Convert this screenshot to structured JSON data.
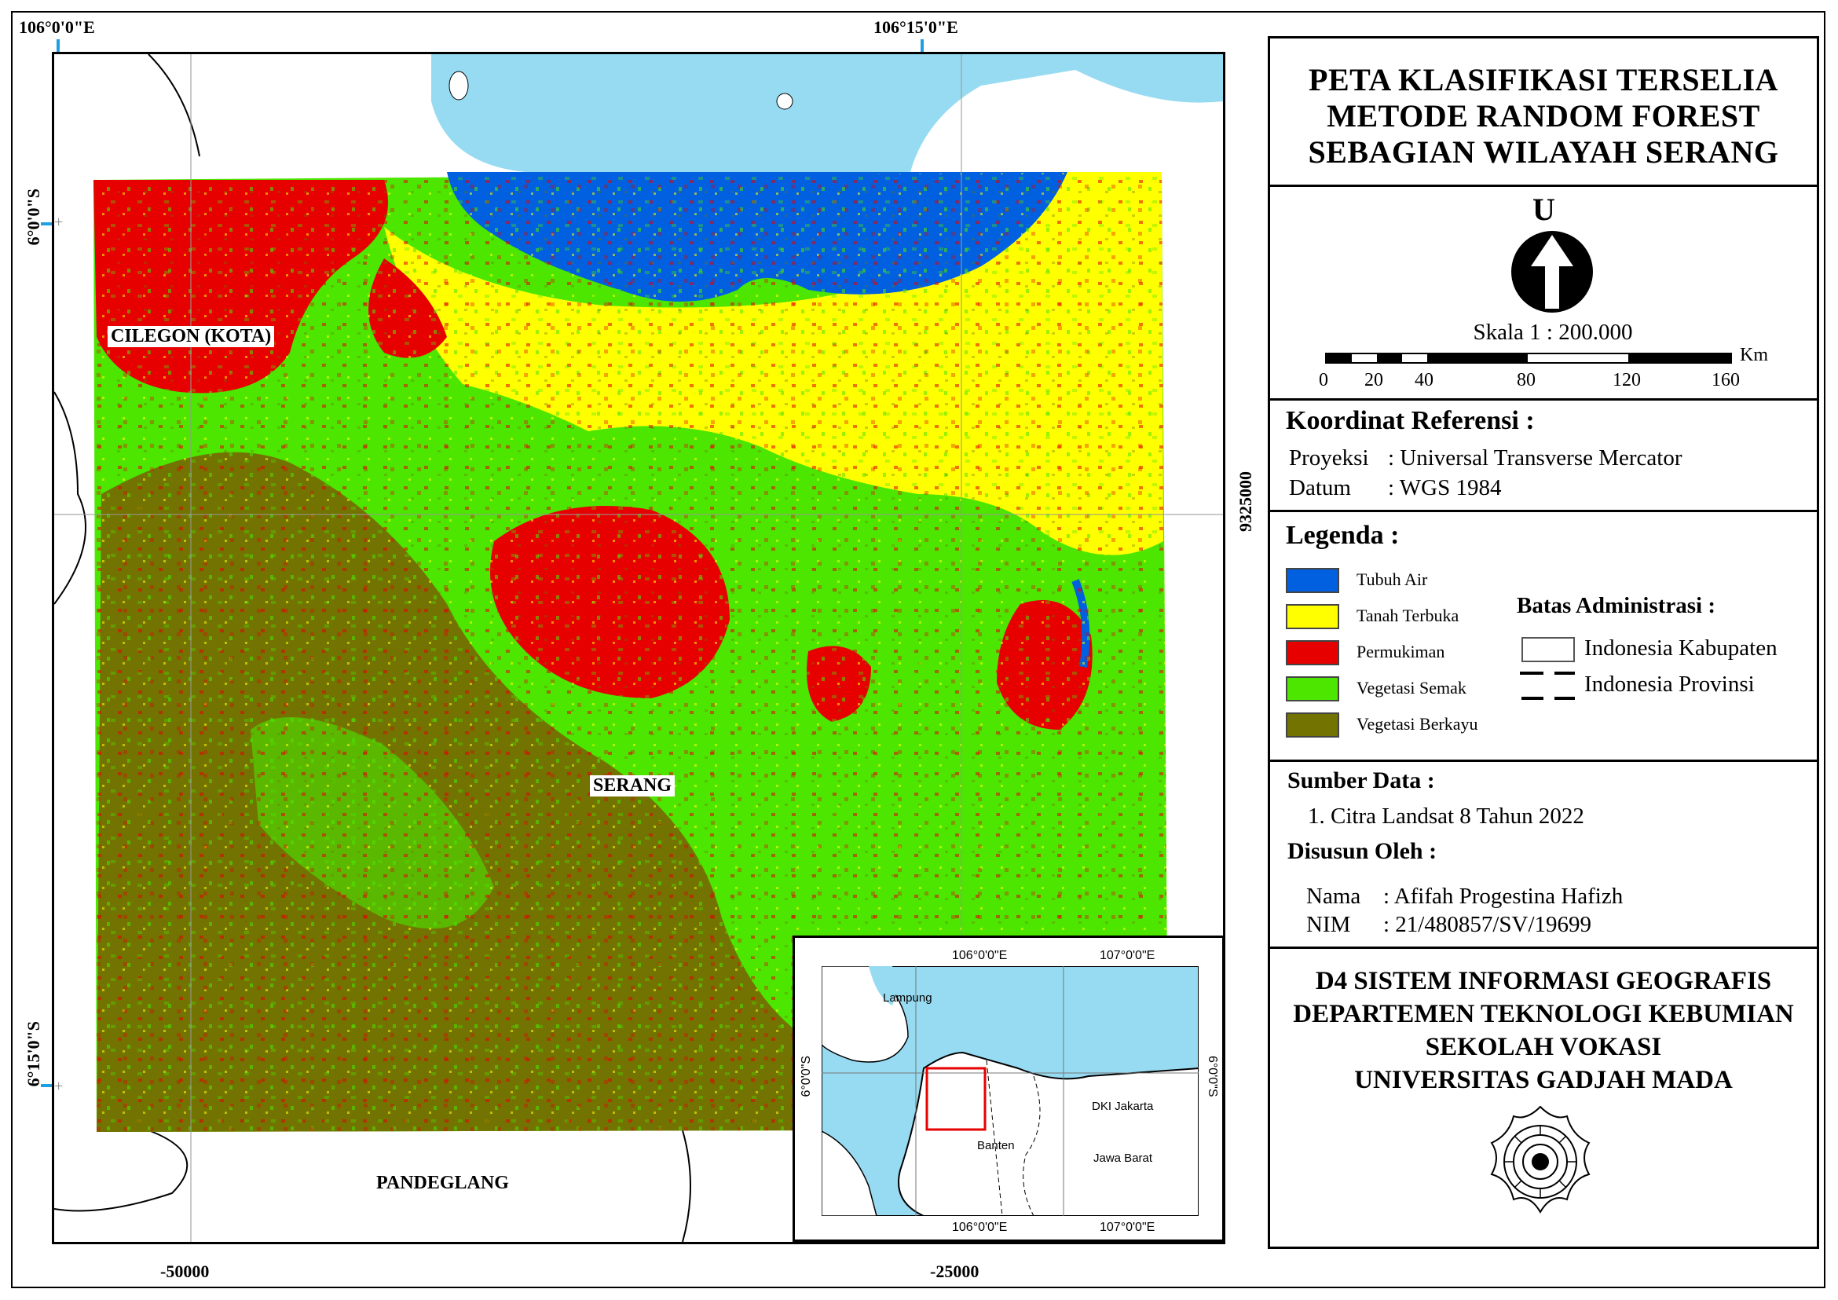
{
  "map": {
    "top_ticks": [
      "106°0'0\"E",
      "106°15'0\"E"
    ],
    "left_ticks": [
      "6°0'0\"S",
      "6°15'0\"S"
    ],
    "bottom_ticks": [
      "-50000",
      "-25000"
    ],
    "right_ticks": [
      "9325000"
    ],
    "places": {
      "cilegon": "CILEGON (KOTA)",
      "serang": "SERANG",
      "pandeglang": "PANDEGLANG"
    },
    "colors": {
      "sea": "#97dbf2",
      "water": "#0060df",
      "bare": "#ffff00",
      "settlement": "#e60000",
      "shrub": "#4ce600",
      "woody": "#727300"
    }
  },
  "inset": {
    "top_ticks": [
      "106°0'0\"E",
      "107°0'0\"E"
    ],
    "bottom_ticks": [
      "106°0'0\"E",
      "107°0'0\"E"
    ],
    "left_tick": "6°0'0\"S",
    "right_tick": "6°0'0\"S",
    "labels": {
      "lampung": "Lampung",
      "banten": "Banten",
      "jakarta": "DKI Jakarta",
      "jabar": "Jawa Barat"
    },
    "highlight_color": "#e60000"
  },
  "title": {
    "line1": "PETA KLASIFIKASI TERSELIA",
    "line2": "METODE RANDOM FOREST",
    "line3": "SEBAGIAN WILAYAH SERANG"
  },
  "north": {
    "label": "U"
  },
  "scale": {
    "text": "Skala 1 : 200.000",
    "unit": "Km",
    "ticks": [
      "0",
      "20",
      "40",
      "80",
      "120",
      "160"
    ]
  },
  "coordinate_ref": {
    "heading": "Koordinat Referensi :",
    "proj_label": "Proyeksi",
    "proj_value": ": Universal Transverse Mercator",
    "datum_label": "Datum",
    "datum_value": ": WGS 1984"
  },
  "legend": {
    "heading": "Legenda :",
    "classes": [
      {
        "label": "Tubuh Air",
        "color": "#0060df"
      },
      {
        "label": "Tanah Terbuka",
        "color": "#ffff00"
      },
      {
        "label": "Permukiman",
        "color": "#e60000"
      },
      {
        "label": "Vegetasi Semak",
        "color": "#4ce600"
      },
      {
        "label": "Vegetasi Berkayu",
        "color": "#727300"
      }
    ],
    "admin_heading": "Batas Administrasi :",
    "admin_kab": "Indonesia Kabupaten",
    "admin_prov": "Indonesia Provinsi"
  },
  "source": {
    "heading": "Sumber Data :",
    "item1": "1.  Citra Landsat 8 Tahun 2022",
    "author_heading": "Disusun Oleh :",
    "name_label": "Nama",
    "name_value": ": Afifah Progestina Hafizh",
    "nim_label": "NIM",
    "nim_value": ": 21/480857/SV/19699"
  },
  "institution": {
    "line1": "D4 SISTEM INFORMASI GEOGRAFIS",
    "line2": "DEPARTEMEN TEKNOLOGI KEBUMIAN",
    "line3": "SEKOLAH VOKASI",
    "line4": "UNIVERSITAS GADJAH MADA"
  }
}
